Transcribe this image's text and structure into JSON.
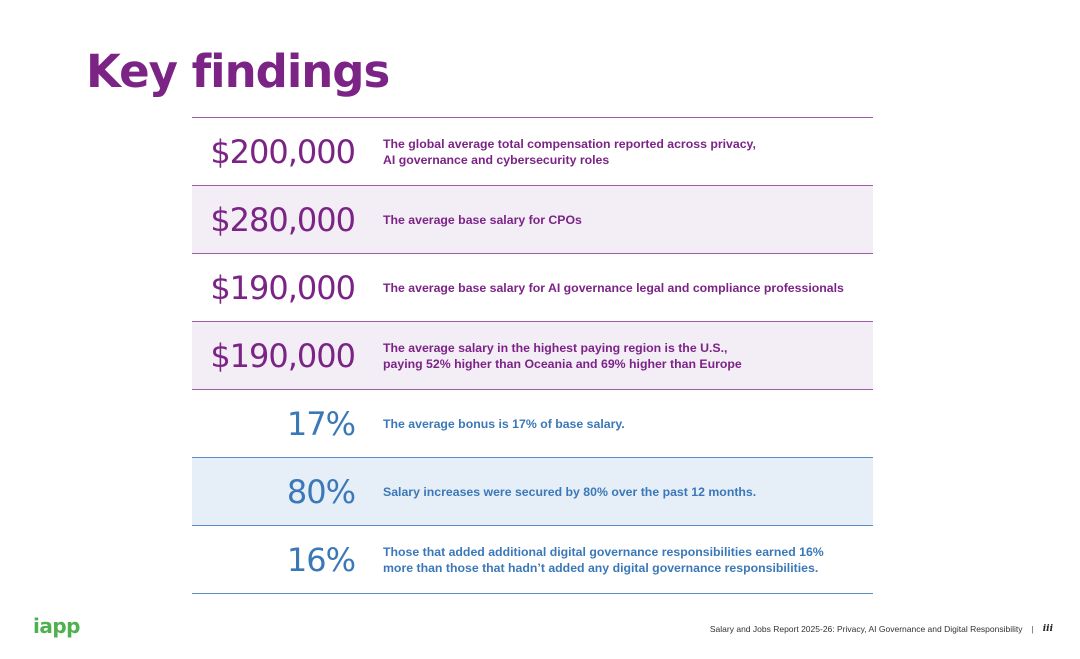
{
  "page": {
    "title": "Key findings"
  },
  "findings": [
    {
      "figure": "$200,000",
      "description_lines": [
        "The global average total compensation reported across privacy,",
        "AI governance and cybersecurity roles"
      ],
      "color": "#7b2486"
    },
    {
      "figure": "$280,000",
      "description_lines": [
        "The average base salary for CPOs"
      ],
      "color": "#7b2486"
    },
    {
      "figure": "$190,000",
      "description_lines": [
        "The average base salary for AI governance legal and compliance professionals"
      ],
      "color": "#7b2486"
    },
    {
      "figure": "$190,000",
      "description_lines": [
        "The average salary in the highest paying region is the U.S.,",
        "paying 52% higher than Oceania and 69% higher than Europe"
      ],
      "color": "#7b2486"
    },
    {
      "figure": "17%",
      "description_lines": [
        "The average bonus is 17% of base salary."
      ],
      "color": "#3b78b7"
    },
    {
      "figure": "80%",
      "description_lines": [
        "Salary increases were secured by 80% over the past 12 months."
      ],
      "color": "#3b78b7"
    },
    {
      "figure": "16%",
      "description_lines": [
        "Those that added additional digital governance responsibilities earned 16%",
        "more than those that hadn’t added any digital governance responsibilities."
      ],
      "color": "#3b78b7"
    }
  ],
  "footer": {
    "logo": "iapp",
    "report_title": "Salary and Jobs Report 2025-26: Privacy, AI Governance and Digital Responsibility",
    "separator": "|",
    "page_number": "iii"
  },
  "colors": {
    "brand_purple": "#7b2486",
    "brand_blue": "#3b78b7",
    "row_shade_purple": "#f3edf6",
    "row_shade_blue": "#e6eef7",
    "logo_green": "#4fb04f"
  }
}
